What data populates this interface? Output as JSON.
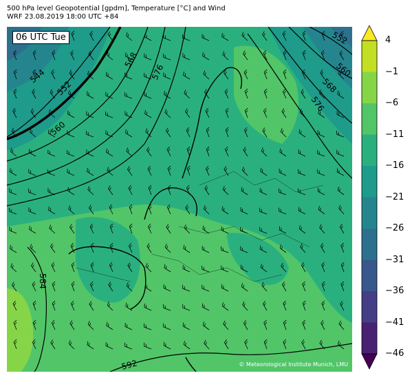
{
  "title": {
    "line1": "500 hPa level Geopotential [gpdm], Temperature [°C] and Wind",
    "line2": "WRF 23.08.2019 18:00 UTC +84"
  },
  "map": {
    "time_label": "06 UTC Tue",
    "copyright": "© Meteorological Institute Munich, LMU",
    "contours": [
      "544",
      "552",
      "560",
      "568",
      "576",
      "584",
      "592",
      "552",
      "560",
      "568",
      "576"
    ]
  },
  "colorbar": {
    "ticks": [
      "4",
      "−1",
      "−6",
      "−11",
      "−16",
      "−21",
      "−26",
      "−31",
      "−36",
      "−41",
      "−46"
    ],
    "values": [
      4,
      -1,
      -6,
      -11,
      -16,
      -21,
      -26,
      -31,
      -36,
      -41,
      -46
    ],
    "colors": [
      "#fde725",
      "#c2df23",
      "#86d549",
      "#52c569",
      "#2ab07f",
      "#1e9b8a",
      "#25858e",
      "#2d708e",
      "#38588c",
      "#433e85",
      "#482173",
      "#440154"
    ]
  }
}
